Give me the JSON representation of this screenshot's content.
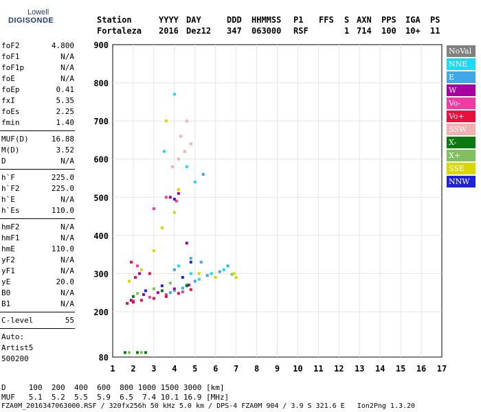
{
  "logo": {
    "line1": "Lowell",
    "line2": "DIGISONDE"
  },
  "header": {
    "row1": [
      "Station",
      "YYYY",
      "DAY",
      "DDD",
      "HHMMSS",
      "P1",
      "FFS",
      "S",
      "AXN",
      "PPS",
      "IGA",
      "PS"
    ],
    "row2": [
      "Fortaleza",
      "2016",
      "Dez12",
      "347",
      "063000",
      "RSF",
      "1",
      "714",
      "100",
      "10+",
      "11"
    ]
  },
  "params": [
    {
      "k": "foF2",
      "v": "4.800"
    },
    {
      "k": "foF1",
      "v": "N/A"
    },
    {
      "k": "foF1p",
      "v": "N/A"
    },
    {
      "k": "foE",
      "v": "N/A"
    },
    {
      "k": "foEp",
      "v": "0.41"
    },
    {
      "k": "fxI",
      "v": "5.35"
    },
    {
      "k": "foEs",
      "v": "2.25"
    },
    {
      "k": "fmin",
      "v": "1.40"
    },
    {
      "k": "MUF(D)",
      "v": "16.88"
    },
    {
      "k": "M(D)",
      "v": "3.52"
    },
    {
      "k": "D",
      "v": "N/A"
    },
    {
      "k": "h`F",
      "v": "225.0"
    },
    {
      "k": "h`F2",
      "v": "225.0"
    },
    {
      "k": "h`E",
      "v": "N/A"
    },
    {
      "k": "h`Es",
      "v": "110.0"
    },
    {
      "k": "hmF2",
      "v": "N/A"
    },
    {
      "k": "hmF1",
      "v": "N/A"
    },
    {
      "k": "hmE",
      "v": "110.0"
    },
    {
      "k": "yF2",
      "v": "N/A"
    },
    {
      "k": "yF1",
      "v": "N/A"
    },
    {
      "k": "yE",
      "v": "20.0"
    },
    {
      "k": "B0",
      "v": "N/A"
    },
    {
      "k": "B1",
      "v": "N/A"
    },
    {
      "k": "C-level",
      "v": "55"
    }
  ],
  "auto": {
    "l1": "Auto:",
    "l2": "Artist5",
    "l3": "500200"
  },
  "legend": [
    {
      "label": "NoVal",
      "color": "#808080"
    },
    {
      "label": "NNE",
      "color": "#1adcf0"
    },
    {
      "label": "E",
      "color": "#3fa8e8"
    },
    {
      "label": "W",
      "color": "#a800a0"
    },
    {
      "label": "Vo-",
      "color": "#f03ca0"
    },
    {
      "label": "Vo+",
      "color": "#e8103c"
    },
    {
      "label": "SSW",
      "color": "#f0b0b0"
    },
    {
      "label": "X-",
      "color": "#0a7a10"
    },
    {
      "label": "X+",
      "color": "#80c060"
    },
    {
      "label": "SSE",
      "color": "#d8d800"
    },
    {
      "label": "NNW",
      "color": "#2020e0"
    }
  ],
  "footer": {
    "d_row": "D     100  200  400  600  800 1000 1500 3000 [km]",
    "muf_row": "MUF   5.1  5.2  5.5  5.9  6.5  7.4 10.1 16.9 [MHz]",
    "file_row": "FZA0M_2016347063000.RSF / 320fx256h 50 kHz 5.0 km / DPS-4 FZA0M 904 / 3.9 S 321.6 E   Ion2Png 1.3.20"
  },
  "chart_data": {
    "type": "scatter",
    "title": "",
    "xlabel": "",
    "ylabel": "",
    "xlim": [
      1,
      17
    ],
    "ylim": [
      80,
      900
    ],
    "x_ticks": [
      1,
      2,
      3,
      4,
      5,
      6,
      7,
      8,
      9,
      10,
      11,
      12,
      13,
      14,
      15,
      16,
      17
    ],
    "y_ticks": [
      80,
      200,
      300,
      400,
      500,
      600,
      700,
      800,
      900
    ],
    "grid": true,
    "series": [
      {
        "name": "NNE",
        "color": "#1adcf0",
        "points": [
          [
            3.6,
            240
          ],
          [
            4.0,
            255
          ],
          [
            4.6,
            270
          ],
          [
            5.2,
            285
          ],
          [
            5.8,
            300
          ],
          [
            6.4,
            310
          ],
          [
            4.2,
            320
          ],
          [
            4.8,
            300
          ],
          [
            5.0,
            540
          ],
          [
            4.6,
            580
          ],
          [
            4.0,
            770
          ],
          [
            3.5,
            620
          ]
        ]
      },
      {
        "name": "E",
        "color": "#3fa8e8",
        "points": [
          [
            3.8,
            250
          ],
          [
            4.4,
            262
          ],
          [
            5.0,
            280
          ],
          [
            5.6,
            295
          ],
          [
            6.2,
            305
          ],
          [
            6.6,
            320
          ],
          [
            5.3,
            330
          ],
          [
            4.8,
            340
          ],
          [
            4.0,
            310
          ],
          [
            5.4,
            560
          ]
        ]
      },
      {
        "name": "W",
        "color": "#a800a0",
        "points": [
          [
            1.9,
            230
          ],
          [
            2.5,
            245
          ],
          [
            3.2,
            250
          ],
          [
            4.0,
            260
          ],
          [
            4.7,
            270
          ],
          [
            2.3,
            300
          ],
          [
            3.8,
            500
          ],
          [
            4.2,
            510
          ],
          [
            4.6,
            380
          ]
        ]
      },
      {
        "name": "Vo-",
        "color": "#f03ca0",
        "points": [
          [
            2.0,
            228
          ],
          [
            2.8,
            238
          ],
          [
            3.6,
            245
          ],
          [
            4.4,
            252
          ],
          [
            2.2,
            320
          ],
          [
            3.0,
            470
          ],
          [
            3.6,
            500
          ],
          [
            4.1,
            490
          ]
        ]
      },
      {
        "name": "Vo+",
        "color": "#e8103c",
        "points": [
          [
            1.7,
            222
          ],
          [
            2.0,
            225
          ],
          [
            2.4,
            230
          ],
          [
            3.0,
            235
          ],
          [
            3.6,
            240
          ],
          [
            4.2,
            248
          ],
          [
            4.8,
            258
          ],
          [
            2.1,
            290
          ],
          [
            2.8,
            300
          ],
          [
            1.9,
            330
          ]
        ]
      },
      {
        "name": "SSW",
        "color": "#f0b0b0",
        "points": [
          [
            4.2,
            600
          ],
          [
            4.5,
            620
          ],
          [
            4.8,
            640
          ],
          [
            4.3,
            660
          ],
          [
            3.9,
            580
          ],
          [
            4.6,
            700
          ]
        ]
      },
      {
        "name": "X-",
        "color": "#0a7a10",
        "points": [
          [
            1.6,
            92
          ],
          [
            2.2,
            92
          ],
          [
            2.6,
            92
          ],
          [
            2.0,
            240
          ],
          [
            3.4,
            255
          ],
          [
            4.6,
            268
          ]
        ]
      },
      {
        "name": "X+",
        "color": "#80c060",
        "points": [
          [
            1.8,
            92
          ],
          [
            2.4,
            92
          ],
          [
            2.2,
            248
          ],
          [
            3.0,
            260
          ],
          [
            3.8,
            275
          ],
          [
            6.0,
            290
          ],
          [
            6.8,
            298
          ]
        ]
      },
      {
        "name": "SSE",
        "color": "#d8d800",
        "points": [
          [
            1.8,
            280
          ],
          [
            2.4,
            310
          ],
          [
            3.0,
            360
          ],
          [
            3.4,
            420
          ],
          [
            4.0,
            460
          ],
          [
            5.2,
            300
          ],
          [
            6.0,
            290
          ],
          [
            6.9,
            300
          ],
          [
            7.0,
            290
          ],
          [
            4.2,
            520
          ],
          [
            3.6,
            700
          ]
        ]
      },
      {
        "name": "NNW",
        "color": "#2020e0",
        "points": [
          [
            2.6,
            255
          ],
          [
            3.4,
            268
          ],
          [
            4.4,
            290
          ],
          [
            4.0,
            495
          ],
          [
            4.8,
            330
          ]
        ]
      }
    ]
  }
}
